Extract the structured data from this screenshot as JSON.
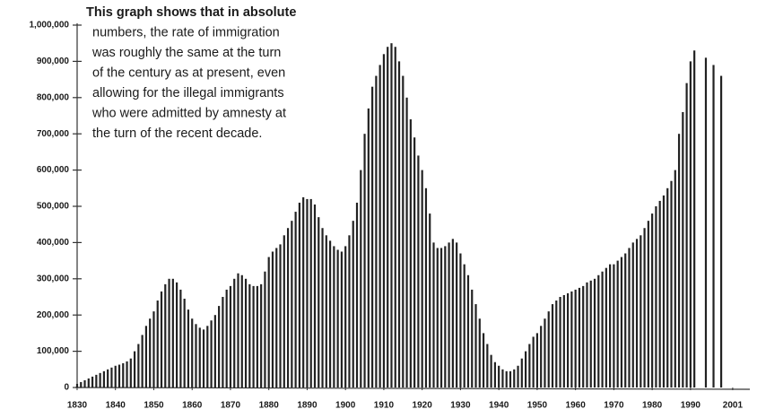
{
  "chart_data": {
    "type": "bar",
    "annotation": [
      "This graph shows that in absolute",
      "numbers, the rate of immigration",
      "was roughly the same at the turn",
      "of the century as at present, even",
      "allowing for the illegal immigrants",
      "who were admitted by amnesty at",
      "the turn of the recent decade."
    ],
    "color": "#222222",
    "x": [
      1830,
      1831,
      1832,
      1833,
      1834,
      1835,
      1836,
      1837,
      1838,
      1839,
      1840,
      1841,
      1842,
      1843,
      1844,
      1845,
      1846,
      1847,
      1848,
      1849,
      1850,
      1851,
      1852,
      1853,
      1854,
      1855,
      1856,
      1857,
      1858,
      1859,
      1860,
      1861,
      1862,
      1863,
      1864,
      1865,
      1866,
      1867,
      1868,
      1869,
      1870,
      1871,
      1872,
      1873,
      1874,
      1875,
      1876,
      1877,
      1878,
      1879,
      1880,
      1881,
      1882,
      1883,
      1884,
      1885,
      1886,
      1887,
      1888,
      1889,
      1890,
      1891,
      1892,
      1893,
      1894,
      1895,
      1896,
      1897,
      1898,
      1899,
      1900,
      1901,
      1902,
      1903,
      1904,
      1905,
      1906,
      1907,
      1908,
      1909,
      1910,
      1911,
      1912,
      1913,
      1914,
      1915,
      1916,
      1917,
      1918,
      1919,
      1920,
      1921,
      1922,
      1923,
      1924,
      1925,
      1926,
      1927,
      1928,
      1929,
      1930,
      1931,
      1932,
      1933,
      1934,
      1935,
      1936,
      1937,
      1938,
      1939,
      1940,
      1941,
      1942,
      1943,
      1944,
      1945,
      1946,
      1947,
      1948,
      1949,
      1950,
      1951,
      1952,
      1953,
      1954,
      1955,
      1956,
      1957,
      1958,
      1959,
      1960,
      1961,
      1962,
      1963,
      1964,
      1965,
      1966,
      1967,
      1968,
      1969,
      1970,
      1971,
      1972,
      1973,
      1974,
      1975,
      1976,
      1977,
      1978,
      1979,
      1980,
      1981,
      1982,
      1983,
      1984,
      1985,
      1986,
      1987,
      1988,
      1989,
      1990,
      1991,
      1994,
      1996,
      1998
    ],
    "values": [
      10000,
      15000,
      20000,
      25000,
      30000,
      35000,
      40000,
      45000,
      50000,
      55000,
      60000,
      63000,
      67000,
      72000,
      80000,
      100000,
      120000,
      145000,
      170000,
      190000,
      210000,
      240000,
      265000,
      285000,
      300000,
      300000,
      290000,
      270000,
      245000,
      215000,
      190000,
      175000,
      165000,
      160000,
      170000,
      185000,
      200000,
      225000,
      250000,
      270000,
      280000,
      300000,
      315000,
      310000,
      300000,
      285000,
      280000,
      280000,
      285000,
      320000,
      360000,
      375000,
      385000,
      395000,
      420000,
      440000,
      460000,
      485000,
      510000,
      525000,
      520000,
      520000,
      505000,
      470000,
      440000,
      420000,
      405000,
      390000,
      380000,
      375000,
      390000,
      420000,
      460000,
      510000,
      600000,
      700000,
      770000,
      830000,
      860000,
      890000,
      920000,
      940000,
      950000,
      940000,
      900000,
      860000,
      800000,
      740000,
      690000,
      640000,
      600000,
      550000,
      480000,
      400000,
      385000,
      385000,
      390000,
      400000,
      410000,
      400000,
      370000,
      340000,
      310000,
      270000,
      230000,
      190000,
      150000,
      120000,
      90000,
      70000,
      60000,
      50000,
      45000,
      45000,
      50000,
      60000,
      80000,
      100000,
      120000,
      140000,
      150000,
      170000,
      190000,
      210000,
      230000,
      240000,
      250000,
      255000,
      260000,
      265000,
      270000,
      275000,
      280000,
      290000,
      295000,
      300000,
      310000,
      320000,
      330000,
      340000,
      340000,
      350000,
      360000,
      370000,
      385000,
      400000,
      410000,
      420000,
      440000,
      460000,
      480000,
      500000,
      515000,
      530000,
      550000,
      570000,
      600000,
      700000,
      760000,
      840000,
      900000,
      930000,
      910000,
      890000,
      860000
    ],
    "xlim": [
      1829,
      2005
    ],
    "xticks": [
      1830,
      1840,
      1850,
      1860,
      1870,
      1880,
      1890,
      1900,
      1910,
      1920,
      1930,
      1940,
      1950,
      1960,
      1970,
      1980,
      1990,
      2001
    ],
    "ylim": [
      0,
      1000000
    ],
    "yticks": [
      0,
      {
        "value": 100000,
        "label": "100,000"
      },
      {
        "value": 200000,
        "label": "200,000"
      },
      {
        "value": 300000,
        "label": "300,000"
      },
      {
        "value": 400000,
        "label": "400,000"
      },
      {
        "value": 500000,
        "label": "500,000"
      },
      {
        "value": 600000,
        "label": "600,000"
      },
      {
        "value": 700000,
        "label": "700,000"
      },
      {
        "value": 800000,
        "label": "800,000"
      },
      {
        "value": 900000,
        "label": "900,000"
      },
      {
        "value": 1000000,
        "label": "1,000,000"
      }
    ]
  }
}
